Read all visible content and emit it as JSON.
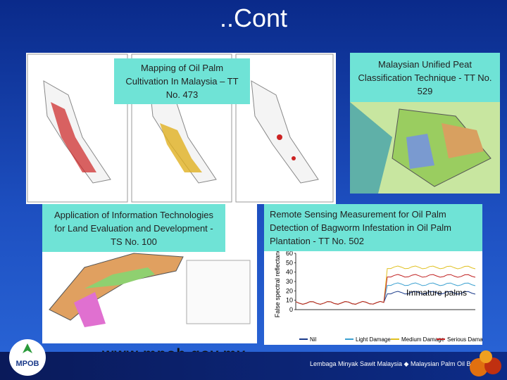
{
  "title": "..Cont",
  "captions": [
    "Mapping of Oil Palm Cultivation In Malaysia – TT No. 473",
    "Malaysian Unified Peat Classification Technique - TT No. 529",
    "Application of Information Technologies for Land Evaluation and Development - TS No. 100",
    "Remote Sensing Measurement for Oil Palm Detection of Bagworm Infestation in Oil Palm Plantation - TT No. 502"
  ],
  "figure": {
    "y_label": "False spectral reflectance",
    "yticks": [
      0,
      10,
      20,
      30,
      40,
      50,
      60
    ],
    "annotation": "Immature palms",
    "legend": [
      "Nil",
      "Light Damage",
      "Medium Damage",
      "Serious Damage"
    ]
  },
  "website": "www.mpob.gov.my",
  "logo": "MPOB",
  "footer": "Lembaga Minyak Sawit Malaysia ◆ Malaysian Palm Oil Board"
}
